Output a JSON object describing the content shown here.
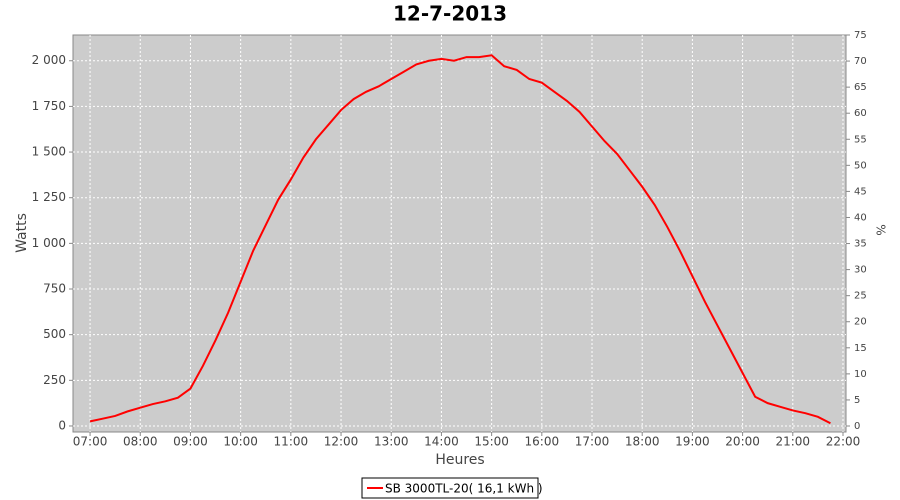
{
  "chart_data": {
    "type": "line",
    "title": "12-7-2013",
    "x_label": "Heures",
    "y_label": "Watts",
    "y2_label": "%",
    "x": [
      7,
      7.25,
      7.5,
      7.75,
      8,
      8.25,
      8.5,
      8.75,
      9,
      9.25,
      9.5,
      9.75,
      10,
      10.25,
      10.5,
      10.75,
      11,
      11.25,
      11.5,
      11.75,
      12,
      12.25,
      12.5,
      12.75,
      13,
      13.25,
      13.5,
      13.75,
      14,
      14.25,
      14.5,
      14.75,
      15,
      15.25,
      15.5,
      15.75,
      16,
      16.25,
      16.5,
      16.75,
      17,
      17.25,
      17.5,
      17.75,
      18,
      18.25,
      18.5,
      18.75,
      19,
      19.25,
      19.5,
      19.75,
      20,
      20.25,
      20.5,
      20.75,
      21,
      21.25,
      21.5,
      21.75
    ],
    "series": [
      {
        "name": "SB 3000TL-20( 16,1 kWh )",
        "color": "#ff0000",
        "values": [
          25,
          40,
          55,
          80,
          100,
          120,
          135,
          155,
          205,
          330,
          470,
          620,
          790,
          960,
          1100,
          1240,
          1350,
          1470,
          1570,
          1650,
          1730,
          1790,
          1830,
          1860,
          1900,
          1940,
          1980,
          2000,
          2010,
          2000,
          2020,
          2020,
          2030,
          1970,
          1950,
          1900,
          1880,
          1830,
          1780,
          1720,
          1640,
          1560,
          1490,
          1400,
          1310,
          1210,
          1090,
          960,
          820,
          680,
          550,
          420,
          290,
          160,
          125,
          105,
          85,
          70,
          50,
          15
        ]
      }
    ],
    "xlim": [
      6.66,
      22.06
    ],
    "xticks": [
      {
        "value": 7,
        "label": "07:00"
      },
      {
        "value": 8,
        "label": "08:00"
      },
      {
        "value": 9,
        "label": "09:00"
      },
      {
        "value": 10,
        "label": "10:00"
      },
      {
        "value": 11,
        "label": "11:00"
      },
      {
        "value": 12,
        "label": "12:00"
      },
      {
        "value": 13,
        "label": "13:00"
      },
      {
        "value": 14,
        "label": "14:00"
      },
      {
        "value": 15,
        "label": "15:00"
      },
      {
        "value": 16,
        "label": "16:00"
      },
      {
        "value": 17,
        "label": "17:00"
      },
      {
        "value": 18,
        "label": "18:00"
      },
      {
        "value": 19,
        "label": "19:00"
      },
      {
        "value": 20,
        "label": "20:00"
      },
      {
        "value": 21,
        "label": "21:00"
      },
      {
        "value": 22,
        "label": "22:00"
      }
    ],
    "ylim": [
      -33,
      2141
    ],
    "yticks": [
      0,
      250,
      500,
      750,
      {
        "value": 1000,
        "label": "1 000"
      },
      {
        "value": 1250,
        "label": "1 250"
      },
      {
        "value": 1500,
        "label": "1 500"
      },
      {
        "value": 1750,
        "label": "1 750"
      },
      {
        "value": 2000,
        "label": "2 000"
      }
    ],
    "y2lim": [
      -1.15,
      75
    ],
    "y2ticks": [
      0,
      5,
      10,
      15,
      20,
      25,
      30,
      35,
      40,
      45,
      50,
      55,
      60,
      65,
      70,
      75
    ],
    "grid": true,
    "legend": "bottom"
  }
}
